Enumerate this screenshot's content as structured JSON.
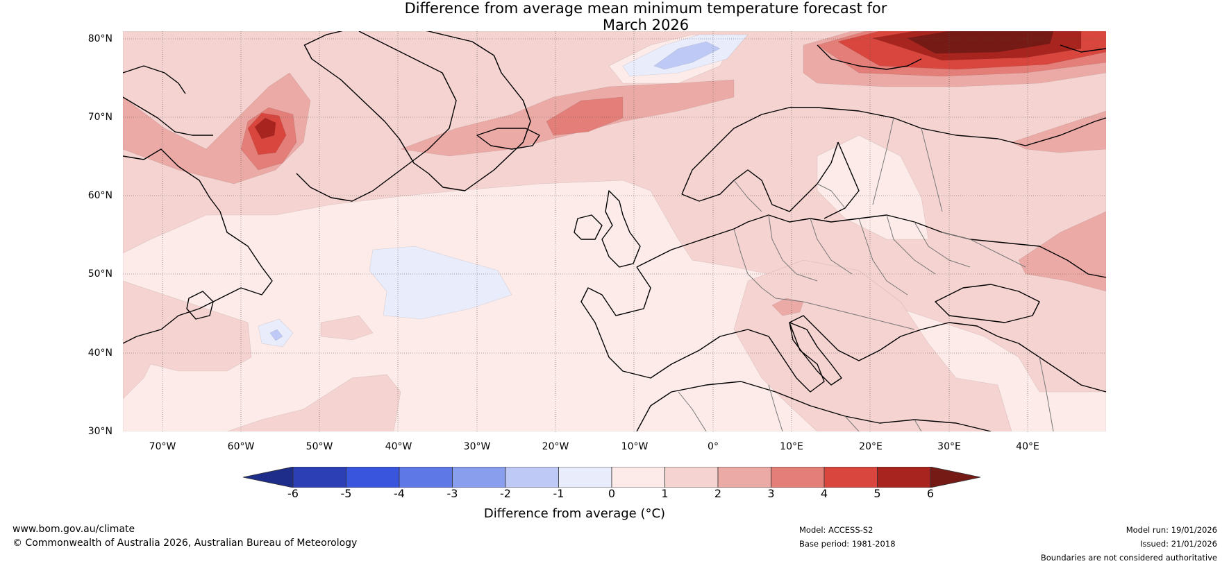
{
  "title_line1": "Difference from average mean minimum temperature forecast for",
  "title_line2": "March 2026",
  "lat_labels": [
    "80°N",
    "70°N",
    "60°N",
    "50°N",
    "40°N",
    "30°N"
  ],
  "lon_labels": [
    "70°W",
    "60°W",
    "50°W",
    "40°W",
    "30°W",
    "20°W",
    "10°W",
    "0°",
    "10°E",
    "20°E",
    "30°E",
    "40°E"
  ],
  "colorbar": {
    "ticks": [
      "-6",
      "-5",
      "-4",
      "-3",
      "-2",
      "-1",
      "0",
      "1",
      "2",
      "3",
      "4",
      "5",
      "6"
    ],
    "label": "Difference from average (°C)",
    "colors": [
      "#1f2d8a",
      "#2c3fb5",
      "#3a55dd",
      "#5e79e6",
      "#8a9eee",
      "#bfc9f5",
      "#e8ecfb",
      "#fcebe9",
      "#f5d3d1",
      "#ecaaa6",
      "#e47e78",
      "#d9463e",
      "#a8241f",
      "#761a15"
    ]
  },
  "map_colors": {
    "base": "#fcebe9",
    "level1": "#f5d3d1",
    "level2": "#ecaaa6",
    "level3": "#e47e78",
    "level4": "#d9463e",
    "level5": "#a8241f",
    "level6": "#761a15",
    "cool1": "#e8ecfb",
    "cool2": "#bfc9f5"
  },
  "footer": {
    "website": "www.bom.gov.au/climate",
    "copyright": "© Commonwealth of Australia 2026, Australian Bureau of Meteorology",
    "model": "Model: ACCESS-S2",
    "base_period": "Base period: 1981-2018",
    "model_run": "Model run: 19/01/2026",
    "issued": "Issued: 21/01/2026",
    "disclaimer": "Boundaries are not considered authoritative"
  }
}
